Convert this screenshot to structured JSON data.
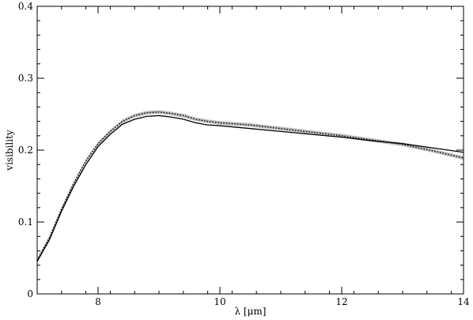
{
  "chart_data": {
    "type": "line",
    "title": "",
    "xlabel": "λ [μm]",
    "ylabel": "visibility",
    "xlim": [
      7,
      14
    ],
    "ylim": [
      0,
      0.4
    ],
    "grid": false,
    "xticks": {
      "major": [
        8,
        10,
        12,
        14
      ],
      "major_labels": [
        "8",
        "10",
        "12",
        "14"
      ],
      "minor_step": 0.4
    },
    "yticks": {
      "major": [
        0,
        0.1,
        0.2,
        0.3,
        0.4
      ],
      "major_labels": [
        "0",
        "0.1",
        "0.2",
        "0.3",
        "0.4"
      ],
      "minor_step": 0.02
    },
    "series": [
      {
        "style": "solid",
        "color": "#000000",
        "x": [
          7.0,
          7.2,
          7.4,
          7.6,
          7.8,
          8.0,
          8.2,
          8.4,
          8.6,
          8.8,
          9.0,
          9.2,
          9.4,
          9.6,
          9.8,
          10.0,
          10.5,
          11.0,
          11.5,
          12.0,
          12.5,
          13.0,
          13.5,
          14.0
        ],
        "y": [
          0.045,
          0.075,
          0.115,
          0.15,
          0.18,
          0.205,
          0.222,
          0.236,
          0.243,
          0.247,
          0.248,
          0.246,
          0.243,
          0.238,
          0.235,
          0.234,
          0.23,
          0.226,
          0.222,
          0.218,
          0.213,
          0.209,
          0.203,
          0.197
        ]
      },
      {
        "style": "dotted",
        "color": "#000000",
        "band_color": "#bdbdbd",
        "band_halfwidth": 0.0025,
        "x": [
          7.0,
          7.2,
          7.4,
          7.6,
          7.8,
          8.0,
          8.2,
          8.4,
          8.6,
          8.8,
          9.0,
          9.2,
          9.4,
          9.6,
          9.8,
          10.0,
          10.5,
          11.0,
          11.5,
          12.0,
          12.5,
          13.0,
          13.5,
          14.0
        ],
        "y": [
          0.047,
          0.078,
          0.118,
          0.154,
          0.185,
          0.209,
          0.226,
          0.24,
          0.248,
          0.252,
          0.253,
          0.251,
          0.248,
          0.243,
          0.24,
          0.238,
          0.235,
          0.23,
          0.225,
          0.22,
          0.214,
          0.208,
          0.199,
          0.189
        ]
      }
    ]
  }
}
